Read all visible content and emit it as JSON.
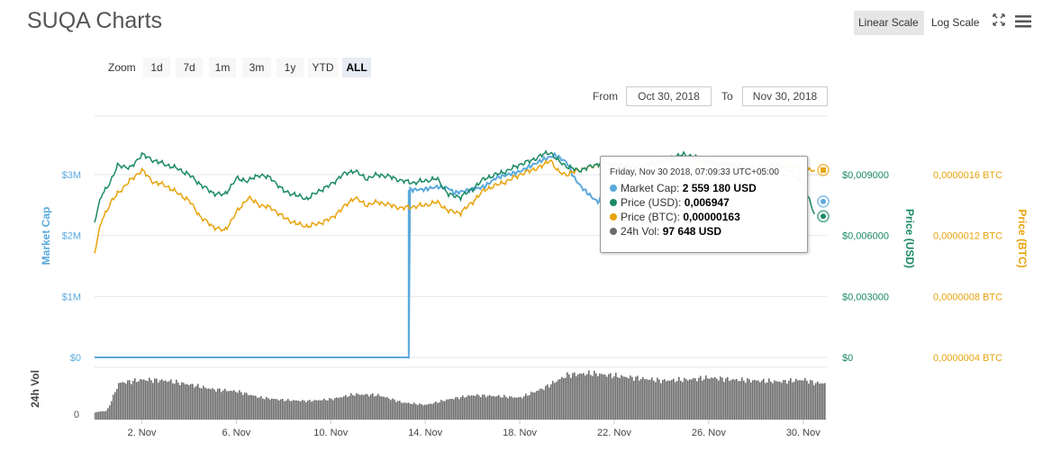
{
  "title": "SUQA Charts",
  "scale_buttons": {
    "linear": "Linear Scale",
    "log": "Log Scale"
  },
  "icons": {
    "fullscreen": "fullscreen-icon",
    "menu": "hamburger-menu-icon"
  },
  "zoom": {
    "label": "Zoom",
    "buttons": [
      "1d",
      "7d",
      "1m",
      "3m",
      "1y",
      "YTD",
      "ALL"
    ],
    "active": "ALL"
  },
  "range": {
    "from_label": "From",
    "from_value": "Oct 30, 2018",
    "to_label": "To",
    "to_value": "Nov 30, 2018"
  },
  "colors": {
    "market_cap": "#5aa9dc",
    "price_usd": "#1a8a63",
    "price_btc": "#e8a30c",
    "volume": "#6b6b6b",
    "grid": "#e6e6e6"
  },
  "tooltip": {
    "header": "Friday, Nov 30 2018, 07:09:33 UTC+05:00",
    "rows": [
      {
        "label": "Market Cap:",
        "value": "2 559 180 USD",
        "color": "#5aa9dc"
      },
      {
        "label": "Price (USD):",
        "value": "0,006947",
        "color": "#1a8a63"
      },
      {
        "label": "Price (BTC):",
        "value": "0,00000163",
        "color": "#e8a30c"
      },
      {
        "label": "24h Vol:",
        "value": "97 648 USD",
        "color": "#6b6b6b"
      }
    ]
  },
  "chart_data": {
    "type": "line",
    "x_range": [
      "2018-10-30",
      "2018-11-30"
    ],
    "x_ticks": [
      "2. Nov",
      "6. Nov",
      "10. Nov",
      "14. Nov",
      "18. Nov",
      "22. Nov",
      "26. Nov",
      "30. Nov"
    ],
    "x_tick_days": [
      2,
      6,
      10,
      14,
      18,
      22,
      26,
      30
    ],
    "axes": {
      "market_cap": {
        "title": "Market Cap",
        "ticks": [
          "$0",
          "$1M",
          "$2M",
          "$3M"
        ],
        "range": [
          0,
          3000000
        ]
      },
      "price_usd": {
        "title": "Price (USD)",
        "ticks": [
          "$0",
          "$0,003000",
          "$0,006000",
          "$0,009000"
        ],
        "range": [
          0,
          0.009
        ]
      },
      "price_btc": {
        "title": "Price (BTC)",
        "ticks": [
          "0,0000004 BTC",
          "0,0000008 BTC",
          "0,0000012 BTC",
          "0,0000016 BTC"
        ],
        "range": [
          4e-07,
          1.6e-06
        ]
      },
      "volume": {
        "title": "24h Vol",
        "ticks": [
          "0"
        ]
      }
    },
    "series": [
      {
        "name": "Market Cap",
        "axis": "market_cap",
        "points": [
          [
            0,
            0
          ],
          [
            13.3,
            0
          ],
          [
            13.3,
            2750000
          ],
          [
            14,
            2760000
          ],
          [
            14.5,
            2800000
          ],
          [
            15,
            2780000
          ],
          [
            15.2,
            2700000
          ],
          [
            15.5,
            2720000
          ],
          [
            16,
            2760000
          ],
          [
            16.5,
            2800000
          ],
          [
            17,
            2950000
          ],
          [
            17.5,
            3000000
          ],
          [
            18,
            3050000
          ],
          [
            18.5,
            3150000
          ],
          [
            19,
            3250000
          ],
          [
            19.5,
            3320000
          ],
          [
            20,
            3200000
          ],
          [
            20.3,
            2950000
          ],
          [
            20.6,
            2800000
          ],
          [
            21,
            2650000
          ],
          [
            21.3,
            2550000
          ],
          [
            21.6,
            2700000
          ]
        ]
      },
      {
        "name": "Price (USD)",
        "axis": "price_usd",
        "points": [
          [
            0,
            0.0067
          ],
          [
            0.3,
            0.008
          ],
          [
            0.7,
            0.0087
          ],
          [
            1,
            0.0095
          ],
          [
            1.5,
            0.0093
          ],
          [
            2,
            0.01
          ],
          [
            2.5,
            0.0097
          ],
          [
            3,
            0.0095
          ],
          [
            3.5,
            0.0093
          ],
          [
            4,
            0.009
          ],
          [
            4.5,
            0.0085
          ],
          [
            5,
            0.0081
          ],
          [
            5.5,
            0.008
          ],
          [
            6,
            0.0088
          ],
          [
            6.5,
            0.0087
          ],
          [
            7,
            0.009
          ],
          [
            7.5,
            0.0088
          ],
          [
            8,
            0.0082
          ],
          [
            8.5,
            0.008
          ],
          [
            9,
            0.0078
          ],
          [
            9.5,
            0.0082
          ],
          [
            10,
            0.0085
          ],
          [
            10.5,
            0.009
          ],
          [
            11,
            0.0092
          ],
          [
            11.5,
            0.0088
          ],
          [
            12,
            0.009
          ],
          [
            12.5,
            0.0089
          ],
          [
            13,
            0.0087
          ],
          [
            13.5,
            0.0086
          ],
          [
            14,
            0.0087
          ],
          [
            14.5,
            0.0088
          ],
          [
            15,
            0.008
          ],
          [
            15.5,
            0.0079
          ],
          [
            16,
            0.0083
          ],
          [
            16.5,
            0.0088
          ],
          [
            17,
            0.009
          ],
          [
            17.5,
            0.0092
          ],
          [
            18,
            0.0095
          ],
          [
            18.5,
            0.0097
          ],
          [
            19,
            0.01
          ],
          [
            19.3,
            0.0101
          ],
          [
            19.6,
            0.0097
          ],
          [
            20,
            0.0094
          ],
          [
            20.5,
            0.0092
          ],
          [
            21,
            0.0094
          ],
          [
            21.5,
            0.0096
          ],
          [
            22,
            0.0095
          ],
          [
            23,
            0.0094
          ],
          [
            24,
            0.0097
          ],
          [
            25,
            0.01
          ],
          [
            26,
            0.0096
          ],
          [
            27,
            0.0095
          ],
          [
            28,
            0.0093
          ],
          [
            29,
            0.0095
          ],
          [
            29.5,
            0.0091
          ],
          [
            30,
            0.0086
          ],
          [
            30.5,
            0.007
          ]
        ]
      },
      {
        "name": "Price (BTC)",
        "axis": "price_btc",
        "points": [
          [
            0,
            1.09e-06
          ],
          [
            0.3,
            1.3e-06
          ],
          [
            0.7,
            1.42e-06
          ],
          [
            1,
            1.48e-06
          ],
          [
            1.5,
            1.56e-06
          ],
          [
            2,
            1.63e-06
          ],
          [
            2.5,
            1.55e-06
          ],
          [
            3,
            1.53e-06
          ],
          [
            3.5,
            1.48e-06
          ],
          [
            4,
            1.43e-06
          ],
          [
            4.5,
            1.32e-06
          ],
          [
            5,
            1.26e-06
          ],
          [
            5.5,
            1.23e-06
          ],
          [
            6,
            1.35e-06
          ],
          [
            6.5,
            1.45e-06
          ],
          [
            7,
            1.4e-06
          ],
          [
            7.5,
            1.38e-06
          ],
          [
            8,
            1.32e-06
          ],
          [
            8.5,
            1.28e-06
          ],
          [
            9,
            1.26e-06
          ],
          [
            9.5,
            1.28e-06
          ],
          [
            10,
            1.31e-06
          ],
          [
            10.5,
            1.38e-06
          ],
          [
            11,
            1.45e-06
          ],
          [
            11.5,
            1.4e-06
          ],
          [
            12,
            1.42e-06
          ],
          [
            12.5,
            1.4e-06
          ],
          [
            13,
            1.38e-06
          ],
          [
            13.5,
            1.39e-06
          ],
          [
            14,
            1.4e-06
          ],
          [
            14.5,
            1.42e-06
          ],
          [
            15,
            1.36e-06
          ],
          [
            15.5,
            1.35e-06
          ],
          [
            16,
            1.42e-06
          ],
          [
            16.5,
            1.5e-06
          ],
          [
            17,
            1.53e-06
          ],
          [
            17.5,
            1.56e-06
          ],
          [
            18,
            1.6e-06
          ],
          [
            18.5,
            1.63e-06
          ],
          [
            19,
            1.66e-06
          ],
          [
            19.3,
            1.7e-06
          ],
          [
            19.6,
            1.62e-06
          ],
          [
            20,
            1.6e-06
          ],
          [
            20.5,
            1.63e-06
          ],
          [
            21,
            1.65e-06
          ],
          [
            21.5,
            1.68e-06
          ],
          [
            22,
            1.66e-06
          ],
          [
            23,
            1.65e-06
          ],
          [
            24,
            1.68e-06
          ],
          [
            25,
            1.7e-06
          ],
          [
            26,
            1.67e-06
          ],
          [
            27,
            1.66e-06
          ],
          [
            28,
            1.65e-06
          ],
          [
            29,
            1.67e-06
          ],
          [
            29.5,
            1.66e-06
          ],
          [
            30,
            1.64e-06
          ],
          [
            30.5,
            1.63e-06
          ]
        ]
      },
      {
        "name": "24h Vol",
        "axis": "volume",
        "points": [
          [
            0,
            0.15
          ],
          [
            0.5,
            0.18
          ],
          [
            1,
            0.75
          ],
          [
            2,
            0.82
          ],
          [
            3,
            0.8
          ],
          [
            4,
            0.72
          ],
          [
            5,
            0.62
          ],
          [
            6,
            0.58
          ],
          [
            7,
            0.45
          ],
          [
            8,
            0.4
          ],
          [
            9,
            0.38
          ],
          [
            10,
            0.42
          ],
          [
            11,
            0.52
          ],
          [
            12,
            0.5
          ],
          [
            13,
            0.35
          ],
          [
            14,
            0.3
          ],
          [
            15,
            0.42
          ],
          [
            16,
            0.5
          ],
          [
            17,
            0.48
          ],
          [
            18,
            0.45
          ],
          [
            19,
            0.65
          ],
          [
            20,
            0.92
          ],
          [
            21,
            0.95
          ],
          [
            22,
            0.9
          ],
          [
            23,
            0.85
          ],
          [
            24,
            0.8
          ],
          [
            25,
            0.82
          ],
          [
            26,
            0.86
          ],
          [
            27,
            0.82
          ],
          [
            28,
            0.8
          ],
          [
            29,
            0.78
          ],
          [
            30,
            0.82
          ],
          [
            30.5,
            0.75
          ]
        ]
      }
    ]
  }
}
